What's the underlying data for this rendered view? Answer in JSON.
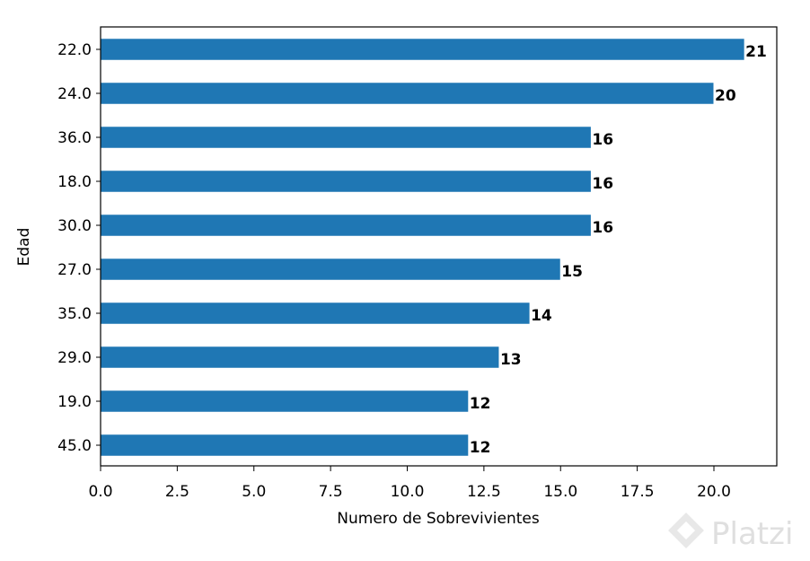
{
  "chart_data": {
    "type": "bar",
    "orientation": "horizontal",
    "categories": [
      "22.0",
      "24.0",
      "36.0",
      "18.0",
      "30.0",
      "27.0",
      "35.0",
      "29.0",
      "19.0",
      "45.0"
    ],
    "values": [
      21,
      20,
      16,
      16,
      16,
      15,
      14,
      13,
      12,
      12
    ],
    "data_labels": [
      "21",
      "20",
      "16",
      "16",
      "16",
      "15",
      "14",
      "13",
      "12",
      "12"
    ],
    "xlabel": "Numero de Sobrevivientes",
    "ylabel": "Edad",
    "xlim": [
      0,
      22.05
    ],
    "xticks": [
      0,
      2.5,
      5,
      7.5,
      10,
      12.5,
      15,
      17.5,
      20
    ],
    "xtick_labels": [
      "0.0",
      "2.5",
      "5.0",
      "7.5",
      "10.0",
      "12.5",
      "15.0",
      "17.5",
      "20.0"
    ],
    "bar_color": "#1f77b4",
    "grid": false
  },
  "watermark": {
    "text": "Platzi",
    "color": "#dcdcdc"
  }
}
